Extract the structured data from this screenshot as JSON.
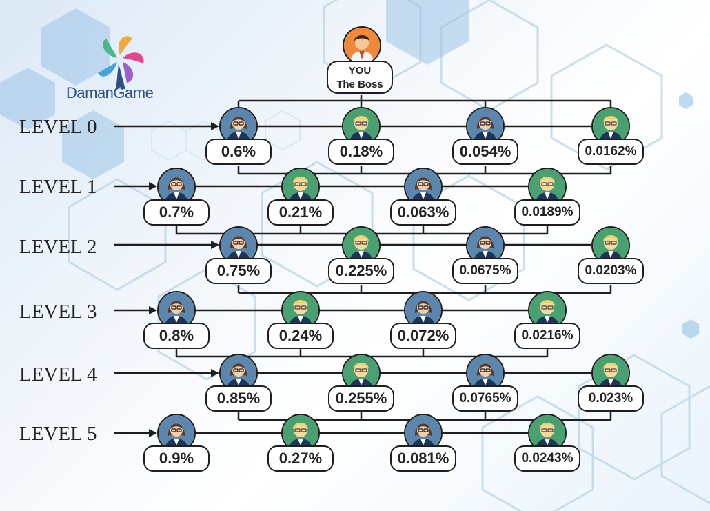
{
  "brand": {
    "name": "DamanGame"
  },
  "boss": {
    "line1": "YOU",
    "line2": "The Boss"
  },
  "levels": [
    {
      "label": "LEVEL 0",
      "percents": [
        "0.6%",
        "0.18%",
        "0.054%",
        "0.0162%"
      ]
    },
    {
      "label": "LEVEL 1",
      "percents": [
        "0.7%",
        "0.21%",
        "0.063%",
        "0.0189%"
      ]
    },
    {
      "label": "LEVEL 2",
      "percents": [
        "0.75%",
        "0.225%",
        "0.0675%",
        "0.0203%"
      ]
    },
    {
      "label": "LEVEL 3",
      "percents": [
        "0.8%",
        "0.24%",
        "0.072%",
        "0.0216%"
      ]
    },
    {
      "label": "LEVEL 4",
      "percents": [
        "0.85%",
        "0.255%",
        "0.0765%",
        "0.023%"
      ]
    },
    {
      "label": "LEVEL 5",
      "percents": [
        "0.9%",
        "0.27%",
        "0.081%",
        "0.0243%"
      ]
    }
  ],
  "avatars": [
    "female-avatar-icon",
    "male-avatar-icon",
    "female-avatar-icon",
    "male-avatar-icon"
  ],
  "colors": {
    "female_bg": "#5b86ad",
    "male_bg": "#49a070",
    "boss_bg": "#f0883a",
    "line": "#1e1e1e"
  }
}
